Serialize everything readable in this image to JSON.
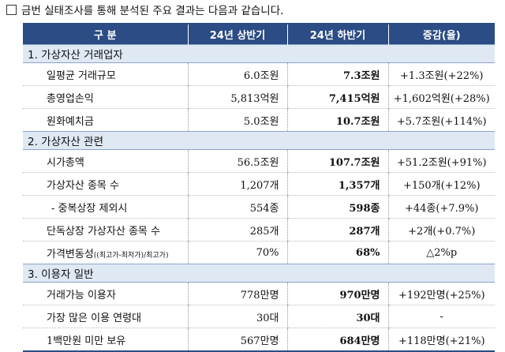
{
  "intro": "금번 실태조사를 통해 분석된 주요 결과는 다음과 같습니다.",
  "header": {
    "col1": "구 분",
    "col2": "24년 상반기",
    "col3": "24년 하반기",
    "col4": "증감(율)"
  },
  "sections": [
    {
      "title": "1. 가상자산 거래업자",
      "rows": [
        {
          "label": "일평균 거래규모",
          "h1": "6.0조원",
          "h2": "7.3조원",
          "change": "+1.3조원(+22%)"
        },
        {
          "label": "총영업손익",
          "h1": "5,813억원",
          "h2": "7,415억원",
          "change": "+1,602억원(+28%)"
        },
        {
          "label": "원화예치금",
          "h1": "5.0조원",
          "h2": "10.7조원",
          "change": "+5.7조원(+114%)"
        }
      ]
    },
    {
      "title": "2. 가상자산 관련",
      "rows": [
        {
          "label": "시가총액",
          "h1": "56.5조원",
          "h2": "107.7조원",
          "change": "+51.2조원(+91%)"
        },
        {
          "label": "가상자산 종목 수",
          "h1": "1,207개",
          "h2": "1,357개",
          "change": "+150개(+12%)"
        },
        {
          "label": "- 중복상장 제외시",
          "h1": "554종",
          "h2": "598종",
          "change": "+44종(+7.9%)"
        },
        {
          "label": "단독상장 가상자산 종목 수",
          "h1": "285개",
          "h2": "287개",
          "change": "+2개(+0.7%)"
        },
        {
          "label": "가격변동성",
          "label_note": "((최고가-최저가)/최고가)",
          "h1": "70%",
          "h2": "68%",
          "change": "△2%p"
        }
      ]
    },
    {
      "title": "3. 이용자 일반",
      "rows": [
        {
          "label": "거래가능 이용자",
          "h1": "778만명",
          "h2": "970만명",
          "change": "+192만명(+25%)"
        },
        {
          "label": "가장 많은 이용 연령대",
          "h1": "30대",
          "h2": "30대",
          "change": "-"
        },
        {
          "label": "1백만원 미만 보유",
          "h1": "567만명",
          "h2": "684만명",
          "change": "+118만명(+21%)"
        }
      ]
    }
  ]
}
